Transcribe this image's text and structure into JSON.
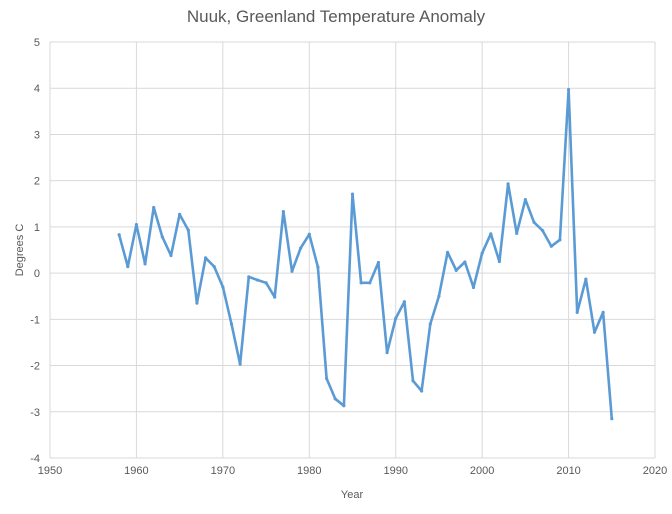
{
  "chart_data": {
    "type": "line",
    "title": "Nuuk, Greenland Temperature Anomaly",
    "xlabel": "Year",
    "ylabel": "Degrees C",
    "xlim": [
      1950,
      2020
    ],
    "ylim": [
      -4,
      5
    ],
    "xticks": [
      1950,
      1960,
      1970,
      1980,
      1990,
      2000,
      2010,
      2020
    ],
    "yticks": [
      5,
      4,
      3,
      2,
      1,
      0,
      -1,
      -2,
      -3,
      -4
    ],
    "grid": true,
    "legend": "none",
    "series": [
      {
        "name": "Temperature Anomaly",
        "color": "#5b9bd5",
        "x": [
          1958,
          1959,
          1960,
          1961,
          1962,
          1963,
          1964,
          1965,
          1966,
          1967,
          1968,
          1969,
          1970,
          1971,
          1972,
          1973,
          1974,
          1975,
          1976,
          1977,
          1978,
          1979,
          1980,
          1981,
          1982,
          1983,
          1984,
          1985,
          1986,
          1987,
          1988,
          1989,
          1990,
          1991,
          1992,
          1993,
          1994,
          1995,
          1996,
          1997,
          1998,
          1999,
          2000,
          2001,
          2002,
          2003,
          2004,
          2005,
          2006,
          2007,
          2008,
          2009,
          2010,
          2011,
          2012,
          2013,
          2014,
          2015
        ],
        "y": [
          0.83,
          0.14,
          1.05,
          0.2,
          1.42,
          0.78,
          0.38,
          1.27,
          0.93,
          -0.65,
          0.33,
          0.14,
          -0.3,
          -1.1,
          -1.97,
          -0.08,
          -0.15,
          -0.21,
          -0.52,
          1.33,
          0.04,
          0.54,
          0.84,
          0.13,
          -2.28,
          -2.72,
          -2.87,
          1.71,
          -0.21,
          -0.21,
          0.23,
          -1.72,
          -0.98,
          -0.62,
          -2.33,
          -2.55,
          -1.1,
          -0.5,
          0.45,
          0.06,
          0.24,
          -0.31,
          0.43,
          0.85,
          0.25,
          1.93,
          0.86,
          1.59,
          1.1,
          0.92,
          0.58,
          0.72,
          3.97,
          -0.85,
          -0.13,
          -1.28,
          -0.85,
          -3.15
        ]
      }
    ]
  }
}
